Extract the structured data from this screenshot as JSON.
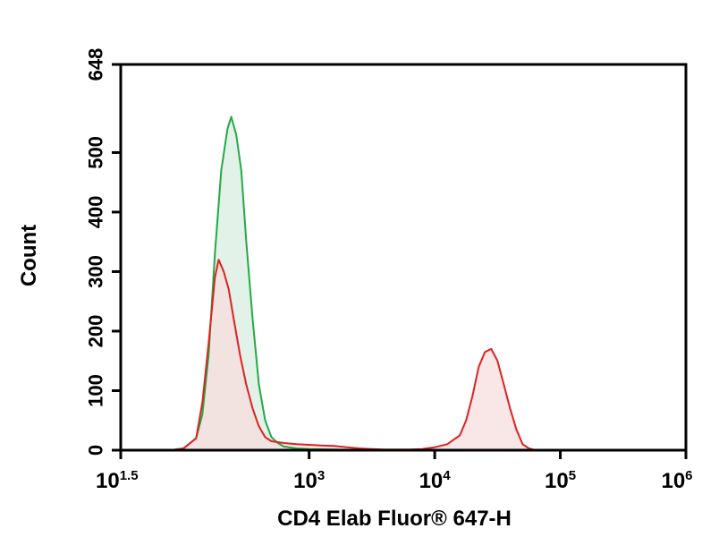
{
  "chart_data": {
    "type": "area",
    "xlabel": "CD4 Elab Fluor® 647-H",
    "ylabel": "Count",
    "x_scale": "log10",
    "xlim_log10": [
      1.5,
      6
    ],
    "ylim": [
      0,
      648
    ],
    "yticks": [
      0,
      100,
      200,
      300,
      400,
      500,
      648
    ],
    "yticks_labels": [
      "0",
      "100",
      "200",
      "300",
      "400",
      "500",
      "648"
    ],
    "xticks_log10": [
      1.5,
      3,
      4,
      5,
      6
    ],
    "xticks_labels": [
      {
        "base": "10",
        "exp": "1.5"
      },
      {
        "base": "10",
        "exp": "3"
      },
      {
        "base": "10",
        "exp": "4"
      },
      {
        "base": "10",
        "exp": "5"
      },
      {
        "base": "10",
        "exp": "6"
      }
    ],
    "grid": false,
    "legend": "none",
    "series": [
      {
        "color": "#22aa44",
        "fill": "#d8eee0",
        "points": [
          [
            1.5,
            0
          ],
          [
            1.9,
            0
          ],
          [
            2.0,
            3
          ],
          [
            2.1,
            20
          ],
          [
            2.15,
            60
          ],
          [
            2.2,
            160
          ],
          [
            2.25,
            330
          ],
          [
            2.3,
            470
          ],
          [
            2.35,
            540
          ],
          [
            2.38,
            560
          ],
          [
            2.42,
            530
          ],
          [
            2.46,
            470
          ],
          [
            2.5,
            350
          ],
          [
            2.55,
            220
          ],
          [
            2.6,
            110
          ],
          [
            2.65,
            50
          ],
          [
            2.7,
            22
          ],
          [
            2.75,
            12
          ],
          [
            2.8,
            6
          ],
          [
            2.9,
            3
          ],
          [
            3.0,
            2
          ],
          [
            3.2,
            1
          ],
          [
            3.5,
            0
          ],
          [
            6.0,
            0
          ]
        ]
      },
      {
        "color": "#dd2222",
        "fill": "#f7dede",
        "points": [
          [
            1.5,
            0
          ],
          [
            1.9,
            0
          ],
          [
            2.0,
            3
          ],
          [
            2.1,
            20
          ],
          [
            2.15,
            80
          ],
          [
            2.2,
            180
          ],
          [
            2.25,
            290
          ],
          [
            2.28,
            320
          ],
          [
            2.32,
            300
          ],
          [
            2.36,
            270
          ],
          [
            2.4,
            220
          ],
          [
            2.45,
            160
          ],
          [
            2.5,
            110
          ],
          [
            2.55,
            70
          ],
          [
            2.6,
            40
          ],
          [
            2.65,
            22
          ],
          [
            2.7,
            15
          ],
          [
            2.8,
            12
          ],
          [
            2.9,
            10
          ],
          [
            3.0,
            9
          ],
          [
            3.1,
            8
          ],
          [
            3.2,
            7
          ],
          [
            3.3,
            5
          ],
          [
            3.4,
            3
          ],
          [
            3.5,
            2
          ],
          [
            3.6,
            1
          ],
          [
            3.8,
            1
          ],
          [
            3.9,
            2
          ],
          [
            4.0,
            5
          ],
          [
            4.1,
            10
          ],
          [
            4.2,
            25
          ],
          [
            4.25,
            50
          ],
          [
            4.3,
            90
          ],
          [
            4.35,
            140
          ],
          [
            4.4,
            165
          ],
          [
            4.45,
            170
          ],
          [
            4.5,
            150
          ],
          [
            4.55,
            110
          ],
          [
            4.6,
            70
          ],
          [
            4.65,
            35
          ],
          [
            4.7,
            10
          ],
          [
            4.75,
            3
          ],
          [
            4.8,
            0
          ],
          [
            6.0,
            0
          ]
        ]
      }
    ]
  }
}
